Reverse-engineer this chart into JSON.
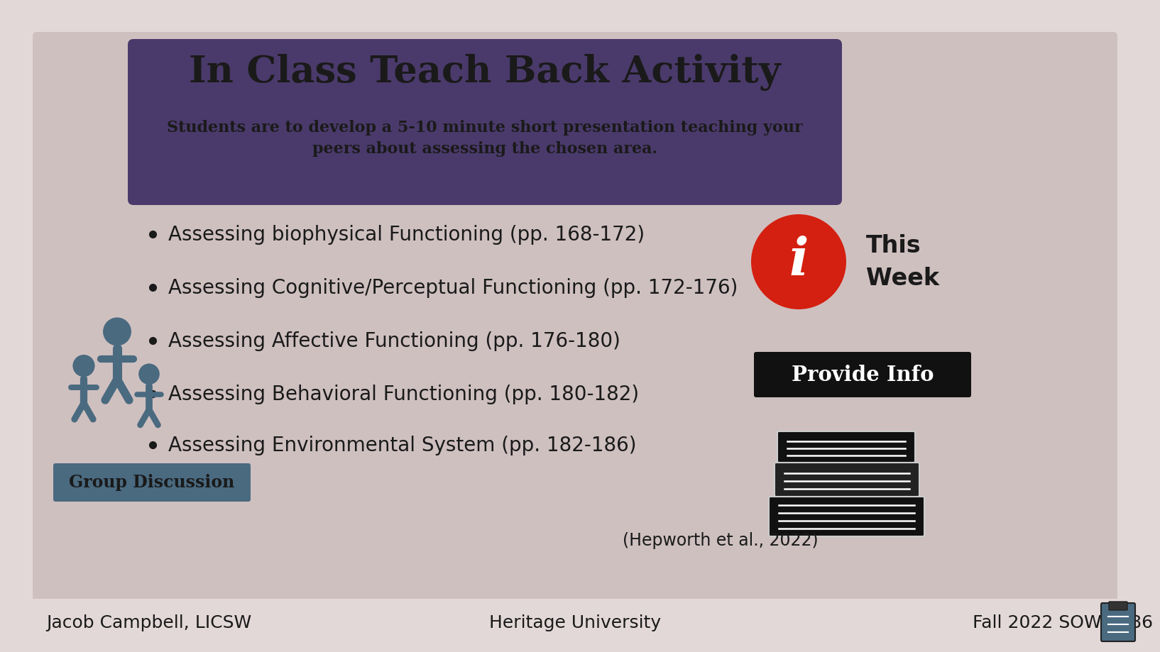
{
  "bg_outer": "#e3d8d8",
  "bg_inner": "#cfc0c0",
  "header_bg": "#4a3a6b",
  "title_text": "In Class Teach Back Activity",
  "title_color": "#1a1a1a",
  "subtitle_line1": "Students are to develop a 5-10 minute short presentation teaching your",
  "subtitle_line2": "peers about assessing the chosen area.",
  "subtitle_color": "#1a1a1a",
  "bullet_items": [
    "Assessing biophysical Functioning (pp. 168-172)",
    "Assessing Cognitive/Perceptual Functioning (pp. 172-176)",
    "Assessing Affective Functioning (pp. 176-180)",
    "Assessing Behavioral Functioning (pp. 180-182)",
    "Assessing Environmental System (pp. 182-186)"
  ],
  "bullet_color": "#1a1a1a",
  "this_week_text": "This\nWeek",
  "this_week_color": "#1a1a1a",
  "info_circle_color": "#d42010",
  "info_text_color": "#ffffff",
  "provide_info_bg": "#111111",
  "provide_info_text": "Provide Info",
  "provide_info_text_color": "#ffffff",
  "group_discussion_bg": "#4a6a80",
  "group_discussion_text": "Group Discussion",
  "group_discussion_text_color": "#1a1a1a",
  "citation_text": "(Hepworth et al., 2022)",
  "citation_color": "#1a1a1a",
  "footer_bg": "#e3d8d8",
  "footer_left": "Jacob Campbell, LICSW",
  "footer_center": "Heritage University",
  "footer_right": "Fall 2022 SOWK 486",
  "footer_color": "#1a1a1a",
  "figure_color": "#4a6a80"
}
